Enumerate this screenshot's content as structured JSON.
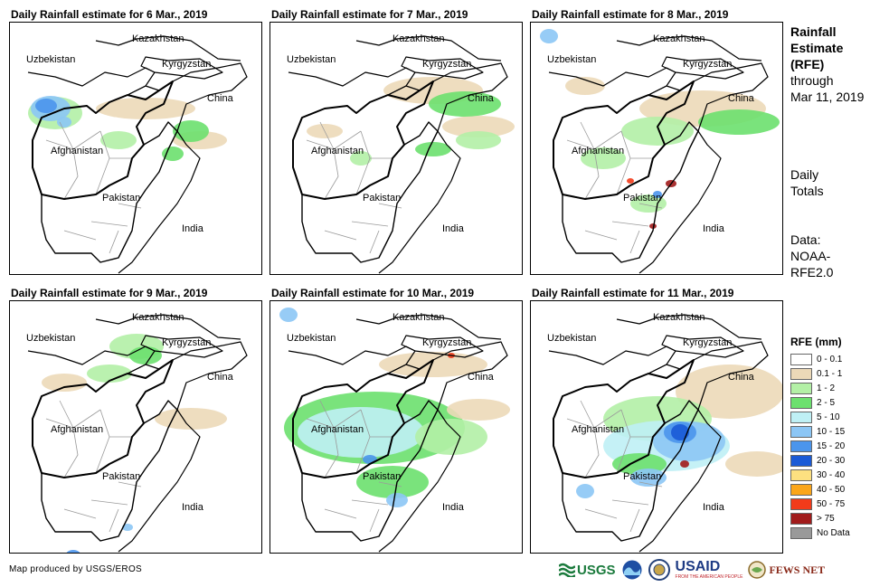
{
  "panels": [
    {
      "title": "Daily Rainfall estimate for 6 Mar., 2019"
    },
    {
      "title": "Daily Rainfall estimate for 7 Mar., 2019"
    },
    {
      "title": "Daily Rainfall estimate for 8 Mar., 2019"
    },
    {
      "title": "Daily Rainfall estimate for 9 Mar., 2019"
    },
    {
      "title": "Daily Rainfall estimate for 10 Mar., 2019"
    },
    {
      "title": "Daily Rainfall estimate for 11 Mar., 2019"
    }
  ],
  "map_labels": {
    "kazakhstan": "Kazakhstan",
    "uzbekistan": "Uzbekistan",
    "kyrgyzstan": "Kyrgyzstan",
    "china": "China",
    "afghanistan": "Afghanistan",
    "pakistan": "Pakistan",
    "india": "India"
  },
  "side": {
    "title_line1": "Rainfall",
    "title_line2": "Estimate",
    "title_line3": "(RFE)",
    "through": "through",
    "date": "Mar 11, 2019",
    "daily1": "Daily",
    "daily2": "Totals",
    "data1": "Data:",
    "data2": "NOAA-",
    "data3": "RFE2.0"
  },
  "legend": {
    "title": "RFE (mm)",
    "items": [
      {
        "label": "0 - 0.1",
        "color": "#ffffff"
      },
      {
        "label": "0.1 - 1",
        "color": "#ecd9b8"
      },
      {
        "label": "1 - 2",
        "color": "#b3f0a6"
      },
      {
        "label": "2 - 5",
        "color": "#6ce06e"
      },
      {
        "label": "5 - 10",
        "color": "#bff0f5"
      },
      {
        "label": "10 - 15",
        "color": "#8cc6f5"
      },
      {
        "label": "15 - 20",
        "color": "#4b95ec"
      },
      {
        "label": "20 - 30",
        "color": "#1a5ad6"
      },
      {
        "label": "30 - 40",
        "color": "#fde080"
      },
      {
        "label": "40 - 50",
        "color": "#fba619"
      },
      {
        "label": "50 - 75",
        "color": "#f23b1a"
      },
      {
        "label": "> 75",
        "color": "#a11b1b"
      },
      {
        "label": "No Data",
        "color": "#999999"
      }
    ]
  },
  "footer": {
    "credit": "Map produced by USGS/EROS",
    "usgs": "USGS",
    "usaid": "USAID",
    "usaid_sub": "FROM THE AMERICAN PEOPLE",
    "fewsnet": "FEWS NET"
  }
}
